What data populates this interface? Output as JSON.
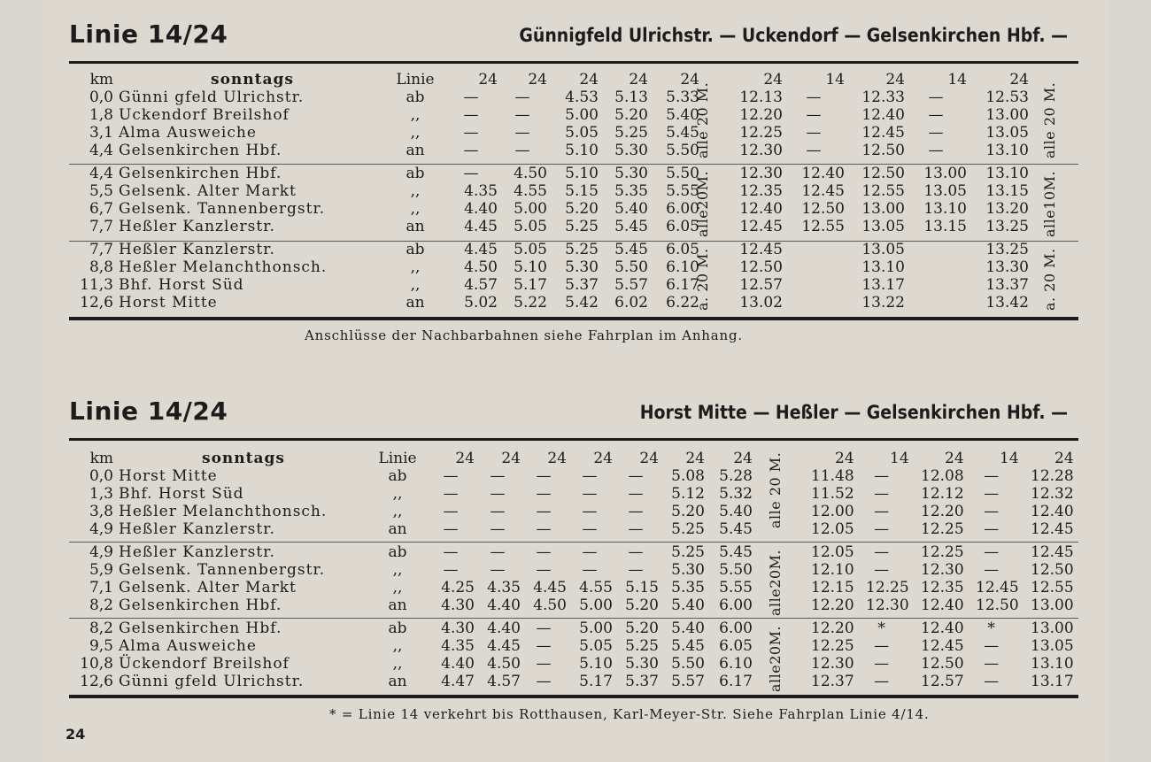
{
  "page_number": "24",
  "sections": [
    {
      "title": "Linie 14/24",
      "route": "Günnigfeld Ulrichstr. — Uckendorf — Gelsenkirchen Hbf. —",
      "header": {
        "km": "km",
        "day": "sonntags",
        "linie": "Linie",
        "lines_a": [
          "24",
          "24",
          "24",
          "24",
          "24"
        ],
        "lines_b": [
          "24",
          "14",
          "24",
          "14",
          "24"
        ]
      },
      "interval_notes_a": [
        "alle 20 M.",
        "alle20M.",
        "a. 20 M."
      ],
      "interval_notes_b": [
        "alle 20 M.",
        "alle10M.",
        "a. 20 M."
      ],
      "groups": [
        [
          {
            "km": "0,0",
            "station": "Günni gfeld  Ulrichstr.",
            "mark": "ab",
            "a": [
              "—",
              "—",
              "4.53",
              "5.13",
              "5.33"
            ],
            "b": [
              "12.13",
              "—",
              "12.33",
              "—",
              "12.53"
            ]
          },
          {
            "km": "1,8",
            "station": "Uckendorf  Breilshof",
            "mark": ",,",
            "a": [
              "—",
              "—",
              "5.00",
              "5.20",
              "5.40"
            ],
            "b": [
              "12.20",
              "—",
              "12.40",
              "—",
              "13.00"
            ]
          },
          {
            "km": "3,1",
            "station": "Alma  Ausweiche",
            "mark": ",,",
            "a": [
              "—",
              "—",
              "5.05",
              "5.25",
              "5.45"
            ],
            "b": [
              "12.25",
              "—",
              "12.45",
              "—",
              "13.05"
            ]
          },
          {
            "km": "4,4",
            "station": "Gelsenkirchen  Hbf.",
            "mark": "an",
            "a": [
              "—",
              "—",
              "5.10",
              "5.30",
              "5.50"
            ],
            "b": [
              "12.30",
              "—",
              "12.50",
              "—",
              "13.10"
            ]
          }
        ],
        [
          {
            "km": "4,4",
            "station": "Gelsenkirchen  Hbf.",
            "mark": "ab",
            "a": [
              "—",
              "4.50",
              "5.10",
              "5.30",
              "5.50"
            ],
            "b": [
              "12.30",
              "12.40",
              "12.50",
              "13.00",
              "13.10"
            ]
          },
          {
            "km": "5,5",
            "station": "Gelsenk.  Alter  Markt",
            "mark": ",,",
            "a": [
              "4.35",
              "4.55",
              "5.15",
              "5.35",
              "5.55"
            ],
            "b": [
              "12.35",
              "12.45",
              "12.55",
              "13.05",
              "13.15"
            ]
          },
          {
            "km": "6,7",
            "station": "Gelsenk. Tannenbergstr.",
            "mark": ",,",
            "a": [
              "4.40",
              "5.00",
              "5.20",
              "5.40",
              "6.00"
            ],
            "b": [
              "12.40",
              "12.50",
              "13.00",
              "13.10",
              "13.20"
            ]
          },
          {
            "km": "7,7",
            "station": "Heßler  Kanzlerstr.",
            "mark": "an",
            "a": [
              "4.45",
              "5.05",
              "5.25",
              "5.45",
              "6.05"
            ],
            "b": [
              "12.45",
              "12.55",
              "13.05",
              "13.15",
              "13.25"
            ]
          }
        ],
        [
          {
            "km": "7,7",
            "station": "Heßler  Kanzlerstr.",
            "mark": "ab",
            "a": [
              "4.45",
              "5.05",
              "5.25",
              "5.45",
              "6.05"
            ],
            "b": [
              "12.45",
              "",
              "13.05",
              "",
              "13.25"
            ]
          },
          {
            "km": "8,8",
            "station": "Heßler  Melanchthonsch.",
            "mark": ",,",
            "a": [
              "4.50",
              "5.10",
              "5.30",
              "5.50",
              "6.10"
            ],
            "b": [
              "12.50",
              "",
              "13.10",
              "",
              "13.30"
            ]
          },
          {
            "km": "11,3",
            "station": "Bhf.  Horst  Süd",
            "mark": ",,",
            "a": [
              "4.57",
              "5.17",
              "5.37",
              "5.57",
              "6.17"
            ],
            "b": [
              "12.57",
              "",
              "13.17",
              "",
              "13.37"
            ]
          },
          {
            "km": "12,6",
            "station": "Horst  Mitte",
            "mark": "an",
            "a": [
              "5.02",
              "5.22",
              "5.42",
              "6.02",
              "6.22"
            ],
            "b": [
              "13.02",
              "",
              "13.22",
              "",
              "13.42"
            ]
          }
        ]
      ],
      "footnote": "Anschlüsse der Nachbarbahnen siehe Fahrplan im Anhang."
    },
    {
      "title": "Linie 14/24",
      "route": "Horst Mitte — Heßler — Gelsenkirchen Hbf. —",
      "header": {
        "km": "km",
        "day": "sonntags",
        "linie": "Linie",
        "lines_a": [
          "24",
          "24",
          "24",
          "24",
          "24",
          "24",
          "24"
        ],
        "lines_b": [
          "24",
          "14",
          "24",
          "14",
          "24"
        ]
      },
      "interval_notes_a": [
        "alle 20 M.",
        "alle20M.",
        "alle20M."
      ],
      "groups": [
        [
          {
            "km": "0,0",
            "station": "Horst  Mitte",
            "mark": "ab",
            "a": [
              "—",
              "—",
              "—",
              "—",
              "—",
              "5.08",
              "5.28"
            ],
            "b": [
              "11.48",
              "—",
              "12.08",
              "—",
              "12.28"
            ]
          },
          {
            "km": "1,3",
            "station": "Bhf.  Horst  Süd",
            "mark": ",,",
            "a": [
              "—",
              "—",
              "—",
              "—",
              "—",
              "5.12",
              "5.32"
            ],
            "b": [
              "11.52",
              "—",
              "12.12",
              "—",
              "12.32"
            ]
          },
          {
            "km": "3,8",
            "station": "Heßler  Melanchthonsch.",
            "mark": ",,",
            "a": [
              "—",
              "—",
              "—",
              "—",
              "—",
              "5.20",
              "5.40"
            ],
            "b": [
              "12.00",
              "—",
              "12.20",
              "—",
              "12.40"
            ]
          },
          {
            "km": "4,9",
            "station": "Heßler  Kanzlerstr.",
            "mark": "an",
            "a": [
              "—",
              "—",
              "—",
              "—",
              "—",
              "5.25",
              "5.45"
            ],
            "b": [
              "12.05",
              "—",
              "12.25",
              "—",
              "12.45"
            ]
          }
        ],
        [
          {
            "km": "4,9",
            "station": "Heßler  Kanzlerstr.",
            "mark": "ab",
            "a": [
              "—",
              "—",
              "—",
              "—",
              "—",
              "5.25",
              "5.45"
            ],
            "b": [
              "12.05",
              "—",
              "12.25",
              "—",
              "12.45"
            ]
          },
          {
            "km": "5,9",
            "station": "Gelsenk. Tannenbergstr.",
            "mark": ",,",
            "a": [
              "—",
              "—",
              "—",
              "—",
              "—",
              "5.30",
              "5.50"
            ],
            "b": [
              "12.10",
              "—",
              "12.30",
              "—",
              "12.50"
            ]
          },
          {
            "km": "7,1",
            "station": "Gelsenk.  Alter  Markt",
            "mark": ",,",
            "a": [
              "4.25",
              "4.35",
              "4.45",
              "4.55",
              "5.15",
              "5.35",
              "5.55"
            ],
            "b": [
              "12.15",
              "12.25",
              "12.35",
              "12.45",
              "12.55"
            ]
          },
          {
            "km": "8,2",
            "station": "Gelsenkirchen  Hbf.",
            "mark": "an",
            "a": [
              "4.30",
              "4.40",
              "4.50",
              "5.00",
              "5.20",
              "5.40",
              "6.00"
            ],
            "b": [
              "12.20",
              "12.30",
              "12.40",
              "12.50",
              "13.00"
            ]
          }
        ],
        [
          {
            "km": "8,2",
            "station": "Gelsenkirchen  Hbf.",
            "mark": "ab",
            "a": [
              "4.30",
              "4.40",
              "—",
              "5.00",
              "5.20",
              "5.40",
              "6.00"
            ],
            "b": [
              "12.20",
              "*",
              "12.40",
              "*",
              "13.00"
            ]
          },
          {
            "km": "9,5",
            "station": "Alma  Ausweiche",
            "mark": ",,",
            "a": [
              "4.35",
              "4.45",
              "—",
              "5.05",
              "5.25",
              "5.45",
              "6.05"
            ],
            "b": [
              "12.25",
              "—",
              "12.45",
              "—",
              "13.05"
            ]
          },
          {
            "km": "10,8",
            "station": "Ückendorf  Breilshof",
            "mark": ",,",
            "a": [
              "4.40",
              "4.50",
              "—",
              "5.10",
              "5.30",
              "5.50",
              "6.10"
            ],
            "b": [
              "12.30",
              "—",
              "12.50",
              "—",
              "13.10"
            ]
          },
          {
            "km": "12,6",
            "station": "Günni gfeld  Ulrichstr.",
            "mark": "an",
            "a": [
              "4.47",
              "4.57",
              "—",
              "5.17",
              "5.37",
              "5.57",
              "6.17"
            ],
            "b": [
              "12.37",
              "—",
              "12.57",
              "—",
              "13.17"
            ]
          }
        ]
      ],
      "footnote": "* = Linie 14 verkehrt bis Rotthausen, Karl-Meyer-Str.  Siehe Fahrplan Linie 4/14."
    }
  ]
}
